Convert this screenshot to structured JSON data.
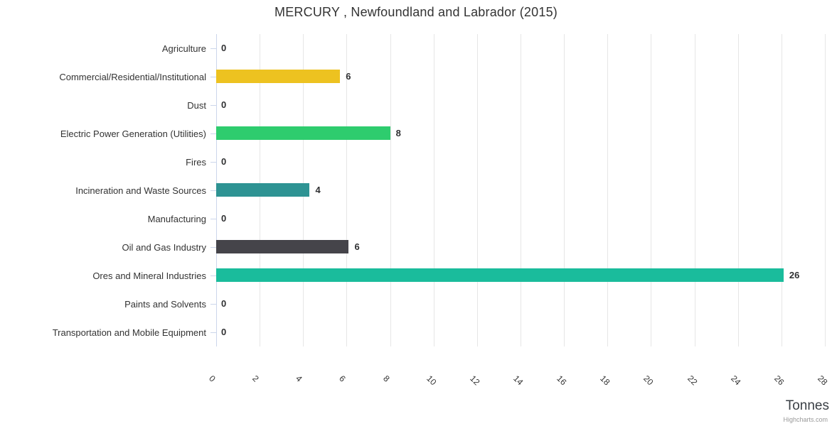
{
  "title": "MERCURY , Newfoundland and Labrador (2015)",
  "credits": "Highcharts.com",
  "axis": {
    "x_title": "Tonnes"
  },
  "colors": {
    "grid": "#e6e6e6",
    "axis_line": "#ccd6eb",
    "title_text": "#333333",
    "category_text": "#333333",
    "data_label_text": "#2f3032",
    "x_axis_title_text": "#3a3f45",
    "credits_text": "#999999",
    "background": "#ffffff"
  },
  "chart_data": {
    "type": "bar",
    "orientation": "horizontal",
    "title": "MERCURY , Newfoundland and Labrador (2015)",
    "xlabel": "Tonnes",
    "ylabel": "",
    "xlim": [
      0,
      28
    ],
    "x_ticks": [
      0,
      2,
      4,
      6,
      8,
      10,
      12,
      14,
      16,
      18,
      20,
      22,
      24,
      26,
      28
    ],
    "grid": true,
    "legend": false,
    "categories": [
      "Agriculture",
      "Commercial/Residential/Institutional",
      "Dust",
      "Electric Power Generation (Utilities)",
      "Fires",
      "Incineration and Waste Sources",
      "Manufacturing",
      "Oil and Gas Industry",
      "Ores and Mineral Industries",
      "Paints and Solvents",
      "Transportation and Mobile Equipment"
    ],
    "values": [
      0,
      6,
      0,
      8,
      0,
      4,
      0,
      6,
      26,
      0,
      0
    ],
    "bar_lengths_estimated": [
      0,
      5.7,
      0,
      8,
      0,
      4.3,
      0,
      6.1,
      26.1,
      0,
      0
    ],
    "bar_colors": [
      null,
      "#edc220",
      null,
      "#2ecc6e",
      null,
      "#2e9393",
      null,
      "#45444a",
      "#1abc9c",
      null,
      null
    ]
  }
}
